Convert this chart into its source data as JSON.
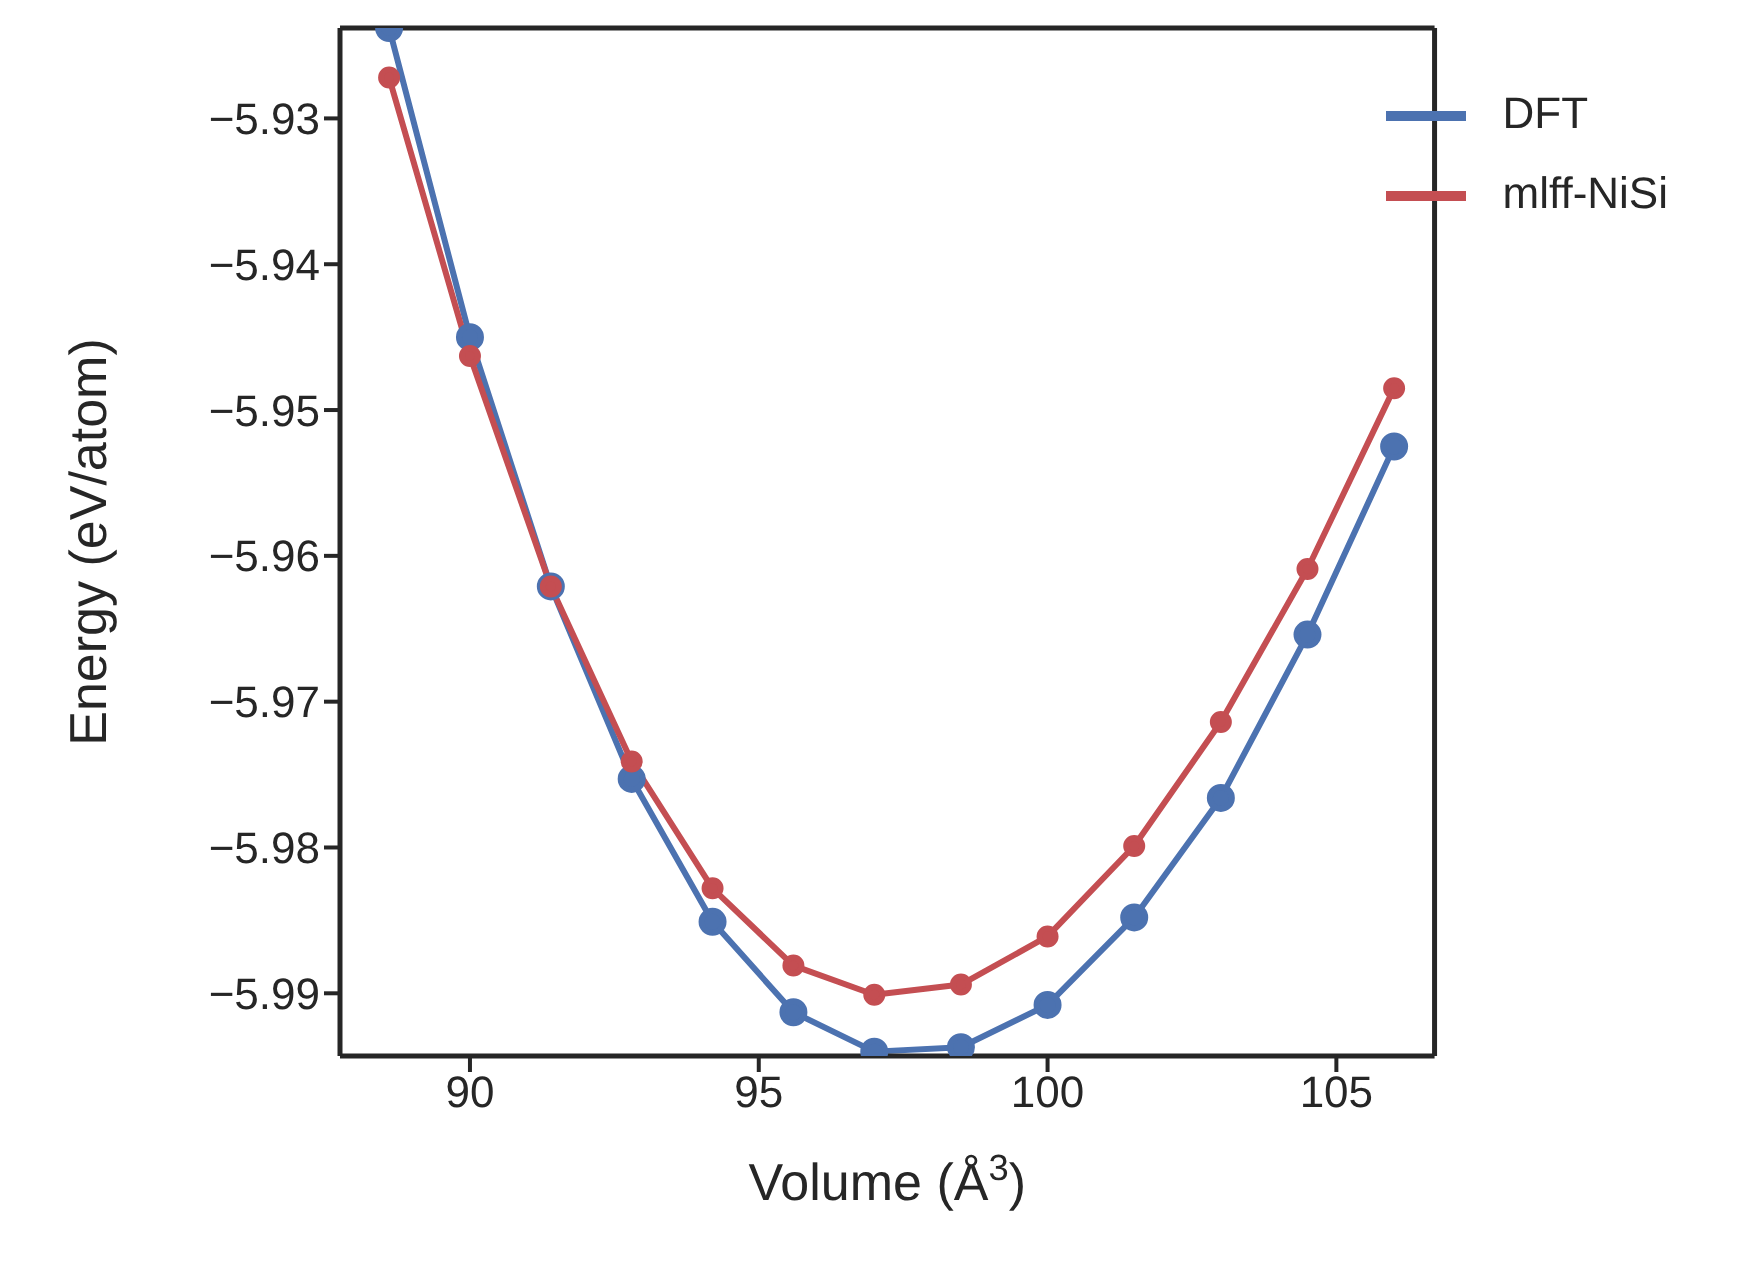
{
  "chart_data": {
    "type": "line",
    "xlabel": "Volume (Å$^{3}$)",
    "ylabel": "Energy (eV/atom)",
    "x": [
      88.6,
      90,
      91.4,
      92.8,
      94.2,
      95.6,
      97,
      98.5,
      100,
      101.5,
      103,
      104.5,
      106
    ],
    "series": [
      {
        "name": "DFT",
        "color": "#4c72b0",
        "values": [
          -5.9238,
          -5.945,
          -5.9621,
          -5.9753,
          -5.9851,
          -5.9913,
          -5.994,
          -5.9937,
          -5.9908,
          -5.9848,
          -5.9766,
          -5.9654,
          -5.9525
        ]
      },
      {
        "name": "mlff-NiSi",
        "color": "#c44e52",
        "values": [
          -5.9272,
          -5.9463,
          -5.9621,
          -5.9741,
          -5.9828,
          -5.9881,
          -5.9901,
          -5.9894,
          -5.9861,
          -5.9799,
          -5.9714,
          -5.9609,
          -5.9485
        ]
      }
    ],
    "xlim": [
      87.75,
      106.7
    ],
    "xticks": [
      90,
      95,
      100,
      105
    ],
    "ylim": [
      -5.9943,
      -5.9238
    ],
    "yticks": [
      -5.93,
      -5.94,
      -5.95,
      -5.96,
      -5.97,
      -5.98,
      -5.99
    ],
    "legend": "top right",
    "marker": "circle",
    "line_style": "solid",
    "grid": false
  }
}
